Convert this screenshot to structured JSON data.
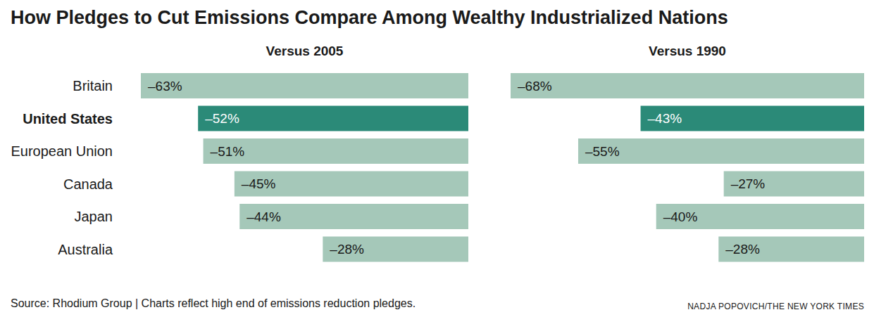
{
  "title": "How Pledges to Cut Emissions Compare Among Wealthy Industrialized Nations",
  "note": "Source: Rhodium Group | Charts reflect high end of emissions reduction pledges.",
  "credit": "NADJA POPOVICH/THE NEW YORK TIMES",
  "chart_data": [
    {
      "type": "bar",
      "title": "Versus 2005",
      "orientation": "horizontal",
      "categories": [
        "Britain",
        "United States",
        "European Union",
        "Canada",
        "Japan",
        "Australia"
      ],
      "values": [
        -63,
        -52,
        -51,
        -45,
        -44,
        -28
      ],
      "value_labels": [
        "–63%",
        "–52%",
        "–51%",
        "–45%",
        "–44%",
        "–28%"
      ],
      "colors": [
        "#a5c8b9",
        "#2b8a78",
        "#a5c8b9",
        "#a5c8b9",
        "#a5c8b9",
        "#a5c8b9"
      ],
      "xlim": [
        -63,
        0
      ],
      "data_labels": true,
      "tick_labels": "y",
      "grid": false
    },
    {
      "type": "bar",
      "title": "Versus 1990",
      "orientation": "horizontal",
      "categories": [
        "Britain",
        "United States",
        "European Union",
        "Canada",
        "Japan",
        "Australia"
      ],
      "values": [
        -68,
        -43,
        -55,
        -27,
        -40,
        -28
      ],
      "value_labels": [
        "–68%",
        "–43%",
        "–55%",
        "–27%",
        "–40%",
        "–28%"
      ],
      "colors": [
        "#a5c8b9",
        "#2b8a78",
        "#a5c8b9",
        "#a5c8b9",
        "#a5c8b9",
        "#a5c8b9"
      ],
      "xlim": [
        -68,
        0
      ],
      "data_labels": true,
      "tick_labels": false,
      "grid": false
    }
  ]
}
